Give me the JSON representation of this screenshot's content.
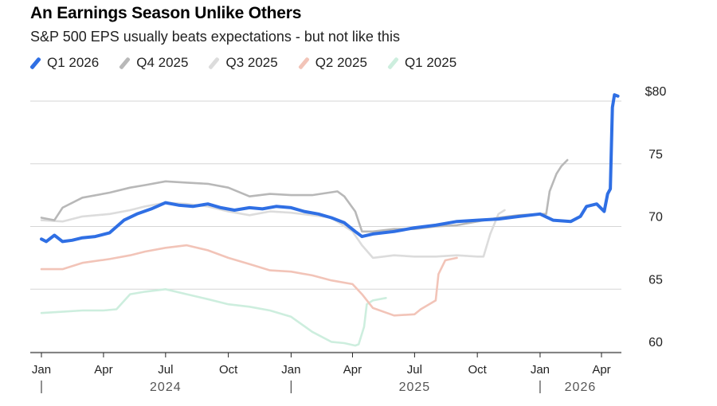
{
  "title": "An Earnings Season Unlike Others",
  "subtitle": "S&P 500 EPS usually beats expectations - but not like this",
  "chart_data": {
    "type": "line",
    "y_axis": {
      "ylim": [
        59.5,
        81.5
      ],
      "ticks": [
        60,
        65,
        70,
        75,
        80
      ],
      "tick_labels": [
        "60",
        "65",
        "70",
        "75",
        "$80"
      ],
      "position": "right",
      "grid": true
    },
    "x_axis": {
      "month_labels": [
        "Jan",
        "Apr",
        "Jul",
        "Oct",
        "Jan",
        "Apr",
        "Jul",
        "Oct",
        "Jan",
        "Apr"
      ],
      "month_dates": [
        "2024-01",
        "2024-04",
        "2024-07",
        "2024-10",
        "2025-01",
        "2025-04",
        "2025-07",
        "2025-10",
        "2026-01",
        "2026-04"
      ],
      "year_labels": [
        "2024",
        "2025",
        "2026"
      ]
    },
    "legend_placement": "top-left",
    "series": [
      {
        "name": "Q1 2026",
        "color": "#2f6fe4",
        "points": [
          [
            "2024-01-01",
            69.0
          ],
          [
            "2024-01-08",
            68.8
          ],
          [
            "2024-01-20",
            69.3
          ],
          [
            "2024-02-01",
            68.8
          ],
          [
            "2024-02-15",
            68.9
          ],
          [
            "2024-03-01",
            69.1
          ],
          [
            "2024-03-20",
            69.2
          ],
          [
            "2024-04-10",
            69.5
          ],
          [
            "2024-05-01",
            70.5
          ],
          [
            "2024-05-20",
            71.0
          ],
          [
            "2024-06-10",
            71.4
          ],
          [
            "2024-07-01",
            71.9
          ],
          [
            "2024-07-20",
            71.7
          ],
          [
            "2024-08-10",
            71.6
          ],
          [
            "2024-09-01",
            71.8
          ],
          [
            "2024-09-20",
            71.5
          ],
          [
            "2024-10-10",
            71.3
          ],
          [
            "2024-11-01",
            71.5
          ],
          [
            "2024-11-20",
            71.4
          ],
          [
            "2024-12-10",
            71.6
          ],
          [
            "2025-01-01",
            71.5
          ],
          [
            "2025-01-20",
            71.2
          ],
          [
            "2025-02-10",
            71.0
          ],
          [
            "2025-03-01",
            70.7
          ],
          [
            "2025-03-20",
            70.3
          ],
          [
            "2025-04-05",
            69.6
          ],
          [
            "2025-04-15",
            69.2
          ],
          [
            "2025-05-01",
            69.4
          ],
          [
            "2025-06-01",
            69.6
          ],
          [
            "2025-07-01",
            69.9
          ],
          [
            "2025-08-01",
            70.1
          ],
          [
            "2025-09-01",
            70.4
          ],
          [
            "2025-10-01",
            70.5
          ],
          [
            "2025-11-01",
            70.6
          ],
          [
            "2025-12-01",
            70.8
          ],
          [
            "2026-01-01",
            71.0
          ],
          [
            "2026-01-20",
            70.5
          ],
          [
            "2026-02-15",
            70.4
          ],
          [
            "2026-03-01",
            70.8
          ],
          [
            "2026-03-10",
            71.6
          ],
          [
            "2026-03-25",
            71.8
          ],
          [
            "2026-04-05",
            71.2
          ],
          [
            "2026-04-10",
            72.6
          ],
          [
            "2026-04-14",
            73.0
          ],
          [
            "2026-04-17",
            79.5
          ],
          [
            "2026-04-20",
            80.5
          ],
          [
            "2026-04-25",
            80.4
          ]
        ]
      },
      {
        "name": "Q4 2025",
        "color": "#b8b8b8",
        "points": [
          [
            "2024-01-01",
            70.7
          ],
          [
            "2024-01-20",
            70.5
          ],
          [
            "2024-02-01",
            71.5
          ],
          [
            "2024-03-01",
            72.3
          ],
          [
            "2024-04-10",
            72.7
          ],
          [
            "2024-05-10",
            73.1
          ],
          [
            "2024-06-01",
            73.3
          ],
          [
            "2024-07-01",
            73.6
          ],
          [
            "2024-08-01",
            73.5
          ],
          [
            "2024-09-01",
            73.4
          ],
          [
            "2024-10-01",
            73.1
          ],
          [
            "2024-11-01",
            72.4
          ],
          [
            "2024-12-01",
            72.6
          ],
          [
            "2025-01-01",
            72.5
          ],
          [
            "2025-02-01",
            72.5
          ],
          [
            "2025-03-10",
            72.8
          ],
          [
            "2025-03-20",
            72.4
          ],
          [
            "2025-04-05",
            71.2
          ],
          [
            "2025-04-15",
            69.6
          ],
          [
            "2025-05-01",
            69.6
          ],
          [
            "2025-06-01",
            69.8
          ],
          [
            "2025-07-01",
            69.8
          ],
          [
            "2025-08-01",
            70.0
          ],
          [
            "2025-09-01",
            70.1
          ],
          [
            "2025-10-01",
            70.4
          ],
          [
            "2025-11-01",
            70.7
          ],
          [
            "2025-12-01",
            70.9
          ],
          [
            "2026-01-01",
            71.0
          ],
          [
            "2026-01-10",
            71.0
          ],
          [
            "2026-01-15",
            72.8
          ],
          [
            "2026-01-25",
            74.2
          ],
          [
            "2026-02-01",
            74.8
          ],
          [
            "2026-02-10",
            75.3
          ]
        ]
      },
      {
        "name": "Q3 2025",
        "color": "#dcdcdc",
        "points": [
          [
            "2024-01-01",
            70.5
          ],
          [
            "2024-02-01",
            70.4
          ],
          [
            "2024-03-01",
            70.8
          ],
          [
            "2024-04-10",
            71.0
          ],
          [
            "2024-05-10",
            71.3
          ],
          [
            "2024-06-01",
            71.6
          ],
          [
            "2024-07-01",
            71.9
          ],
          [
            "2024-08-01",
            71.8
          ],
          [
            "2024-09-01",
            71.6
          ],
          [
            "2024-10-01",
            71.2
          ],
          [
            "2024-11-01",
            70.9
          ],
          [
            "2024-12-01",
            71.2
          ],
          [
            "2025-01-01",
            71.1
          ],
          [
            "2025-02-01",
            70.9
          ],
          [
            "2025-03-01",
            70.7
          ],
          [
            "2025-04-01",
            69.6
          ],
          [
            "2025-04-15",
            68.5
          ],
          [
            "2025-05-01",
            67.5
          ],
          [
            "2025-06-01",
            67.7
          ],
          [
            "2025-07-01",
            67.6
          ],
          [
            "2025-08-01",
            67.6
          ],
          [
            "2025-09-01",
            67.7
          ],
          [
            "2025-10-01",
            67.6
          ],
          [
            "2025-10-10",
            67.6
          ],
          [
            "2025-10-20",
            69.4
          ],
          [
            "2025-11-01",
            71.0
          ],
          [
            "2025-11-10",
            71.3
          ]
        ]
      },
      {
        "name": "Q2 2025",
        "color": "#f2c4b8",
        "points": [
          [
            "2024-01-01",
            66.6
          ],
          [
            "2024-02-01",
            66.6
          ],
          [
            "2024-03-01",
            67.1
          ],
          [
            "2024-04-10",
            67.4
          ],
          [
            "2024-05-10",
            67.7
          ],
          [
            "2024-06-01",
            68.0
          ],
          [
            "2024-07-01",
            68.3
          ],
          [
            "2024-08-01",
            68.5
          ],
          [
            "2024-09-01",
            68.1
          ],
          [
            "2024-10-01",
            67.5
          ],
          [
            "2024-11-01",
            67.0
          ],
          [
            "2024-12-01",
            66.5
          ],
          [
            "2025-01-01",
            66.4
          ],
          [
            "2025-02-01",
            66.1
          ],
          [
            "2025-03-01",
            65.7
          ],
          [
            "2025-04-01",
            65.4
          ],
          [
            "2025-04-15",
            64.6
          ],
          [
            "2025-05-01",
            63.5
          ],
          [
            "2025-06-01",
            62.9
          ],
          [
            "2025-07-01",
            63.0
          ],
          [
            "2025-07-10",
            63.4
          ],
          [
            "2025-08-01",
            64.1
          ],
          [
            "2025-08-05",
            66.2
          ],
          [
            "2025-08-15",
            67.3
          ],
          [
            "2025-09-01",
            67.5
          ]
        ]
      },
      {
        "name": "Q1 2025",
        "color": "#cdeede",
        "points": [
          [
            "2024-01-01",
            63.1
          ],
          [
            "2024-02-01",
            63.2
          ],
          [
            "2024-03-01",
            63.3
          ],
          [
            "2024-04-01",
            63.3
          ],
          [
            "2024-04-20",
            63.4
          ],
          [
            "2024-05-10",
            64.6
          ],
          [
            "2024-06-01",
            64.8
          ],
          [
            "2024-07-01",
            65.0
          ],
          [
            "2024-08-01",
            64.6
          ],
          [
            "2024-09-01",
            64.2
          ],
          [
            "2024-10-01",
            63.8
          ],
          [
            "2024-11-01",
            63.6
          ],
          [
            "2024-12-01",
            63.3
          ],
          [
            "2025-01-01",
            62.8
          ],
          [
            "2025-02-01",
            61.6
          ],
          [
            "2025-03-01",
            60.8
          ],
          [
            "2025-03-20",
            60.7
          ],
          [
            "2025-04-05",
            60.5
          ],
          [
            "2025-04-10",
            60.6
          ],
          [
            "2025-04-18",
            62.0
          ],
          [
            "2025-04-22",
            63.8
          ],
          [
            "2025-05-01",
            64.1
          ],
          [
            "2025-05-20",
            64.3
          ]
        ]
      }
    ]
  }
}
